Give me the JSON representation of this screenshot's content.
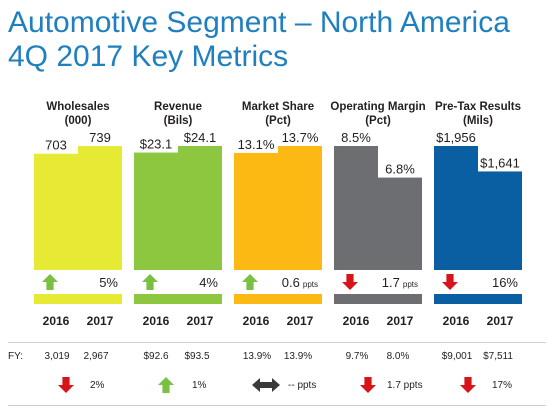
{
  "title": {
    "line1": "Automotive Segment – North America",
    "line2": "4Q 2017 Key Metrics"
  },
  "colors": {
    "title": "#1f7fbf",
    "up_arrow": "#7ac143",
    "down_arrow": "#d7141a",
    "flat_arrow": "#3a3a3a"
  },
  "chart_data": [
    {
      "type": "bar",
      "title": "Wholesales",
      "unit": "(000)",
      "categories": [
        "2016",
        "2017"
      ],
      "values": [
        703,
        739
      ],
      "labels": [
        "703",
        "739"
      ],
      "color": "#e6ea34",
      "change_label": "5%",
      "change_unit": "",
      "direction": "up"
    },
    {
      "type": "bar",
      "title": "Revenue",
      "unit": "(Bils)",
      "categories": [
        "2016",
        "2017"
      ],
      "values": [
        23.1,
        24.1
      ],
      "labels": [
        "$23.1",
        "$24.1"
      ],
      "color": "#8dc63f",
      "change_label": "4%",
      "change_unit": "",
      "direction": "up"
    },
    {
      "type": "bar",
      "title": "Market Share",
      "unit": "(Pct)",
      "categories": [
        "2016",
        "2017"
      ],
      "values": [
        13.1,
        13.7
      ],
      "labels": [
        "13.1%",
        "13.7%"
      ],
      "color": "#fdb913",
      "change_label": "0.6",
      "change_unit": "ppts",
      "direction": "up"
    },
    {
      "type": "bar",
      "title": "Operating Margin",
      "unit": "(Pct)",
      "categories": [
        "2016",
        "2017"
      ],
      "values": [
        8.5,
        6.8
      ],
      "labels": [
        "8.5%",
        "6.8%"
      ],
      "color": "#6d6e71",
      "change_label": "1.7",
      "change_unit": "ppts",
      "direction": "down"
    },
    {
      "type": "bar",
      "title": "Pre-Tax Results",
      "unit": "(Mils)",
      "categories": [
        "2016",
        "2017"
      ],
      "values": [
        1956,
        1641
      ],
      "labels": [
        "$1,956",
        "$1,641"
      ],
      "color": "#0a5fa3",
      "change_label": "16%",
      "change_unit": "",
      "direction": "down"
    }
  ],
  "full_year": {
    "label": "FY:",
    "items": [
      {
        "v2016": "3,019",
        "v2017": "2,967",
        "change": "2%",
        "direction": "down"
      },
      {
        "v2016": "$92.6",
        "v2017": "$93.5",
        "change": "1%",
        "direction": "up"
      },
      {
        "v2016": "13.9%",
        "v2017": "13.9%",
        "change": "-- ppts",
        "direction": "flat"
      },
      {
        "v2016": "9.7%",
        "v2017": "8.0%",
        "change": "1.7 ppts",
        "direction": "down"
      },
      {
        "v2016": "$9,001",
        "v2017": "$7,511",
        "change": "17%",
        "direction": "down"
      }
    ]
  }
}
